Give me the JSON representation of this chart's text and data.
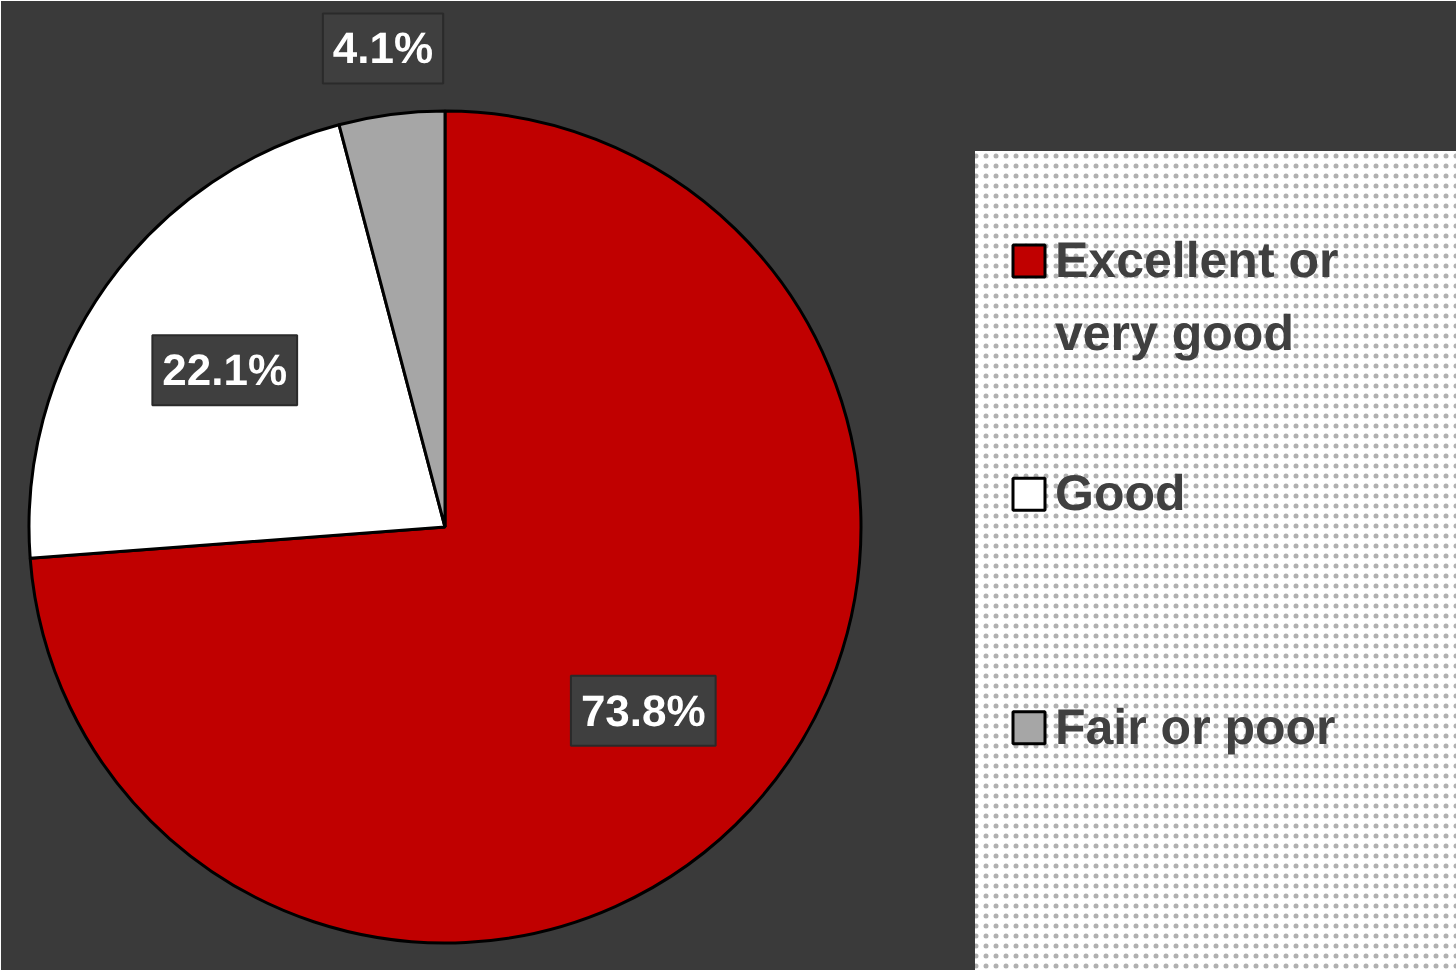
{
  "chart_data": {
    "type": "pie",
    "categories": [
      "Excellent or very good",
      "Good",
      "Fair or poor"
    ],
    "values": [
      73.8,
      22.1,
      4.1
    ],
    "colors": [
      "#c00000",
      "#ffffff",
      "#a6a6a6"
    ],
    "value_labels": [
      "73.8%",
      "22.1%",
      "4.1%"
    ],
    "legend": "right"
  }
}
